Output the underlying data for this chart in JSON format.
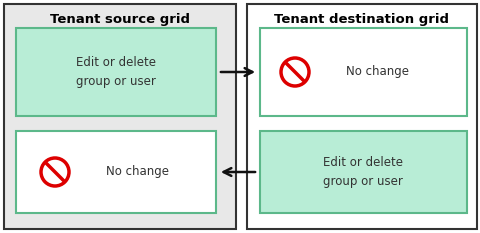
{
  "bg_color": "#e8e8e8",
  "white": "#ffffff",
  "green_fill": "#b8edd6",
  "green_border": "#5cb88a",
  "red_color": "#dd0000",
  "arrow_color": "#111111",
  "title_left": "Tenant source grid",
  "title_right": "Tenant destination grid",
  "box1_text": "Edit or delete\ngroup or user",
  "box2_text": "No change",
  "box3_text": "No change",
  "box4_text": "Edit or delete\ngroup or user",
  "font_size_title": 9.5,
  "font_size_box": 8.5,
  "fig_w": 4.81,
  "fig_h": 2.33,
  "dpi": 100
}
